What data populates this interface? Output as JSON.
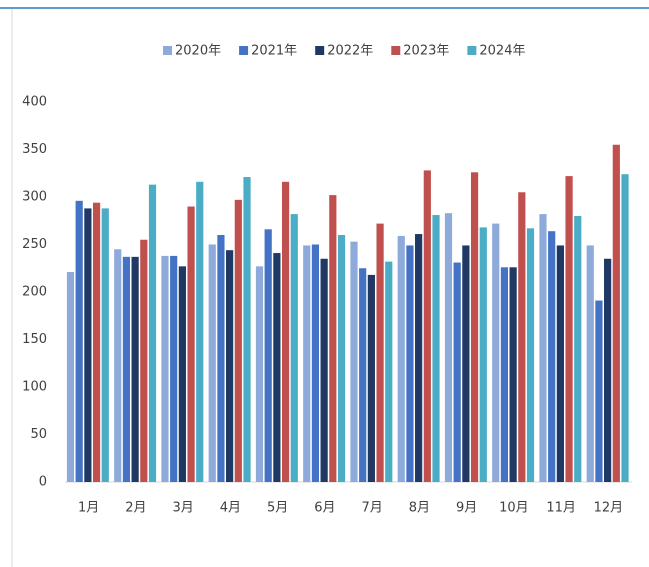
{
  "chart_data": {
    "type": "bar",
    "categories": [
      "1月",
      "2月",
      "3月",
      "4月",
      "5月",
      "6月",
      "7月",
      "8月",
      "9月",
      "10月",
      "11月",
      "12月"
    ],
    "series": [
      {
        "name": "2020年",
        "color": "#8eaadb",
        "values": [
          221,
          245,
          238,
          250,
          227,
          249,
          253,
          259,
          283,
          272,
          282,
          249
        ]
      },
      {
        "name": "2021年",
        "color": "#4472c4",
        "values": [
          296,
          237,
          238,
          260,
          266,
          250,
          225,
          249,
          231,
          226,
          264,
          191
        ]
      },
      {
        "name": "2022年",
        "color": "#1f3864",
        "values": [
          288,
          237,
          227,
          244,
          241,
          235,
          218,
          261,
          249,
          226,
          249,
          235
        ]
      },
      {
        "name": "2023年",
        "color": "#c0504d",
        "values": [
          294,
          255,
          290,
          297,
          316,
          302,
          272,
          328,
          326,
          305,
          322,
          355
        ]
      },
      {
        "name": "2024年",
        "color": "#4bacc6",
        "values": [
          288,
          313,
          316,
          321,
          282,
          260,
          232,
          281,
          268,
          267,
          280,
          324
        ]
      }
    ],
    "ylim": [
      0,
      400
    ],
    "yticks": [
      0,
      50,
      100,
      150,
      200,
      250,
      300,
      350,
      400
    ],
    "grid": false,
    "legend": "top"
  }
}
